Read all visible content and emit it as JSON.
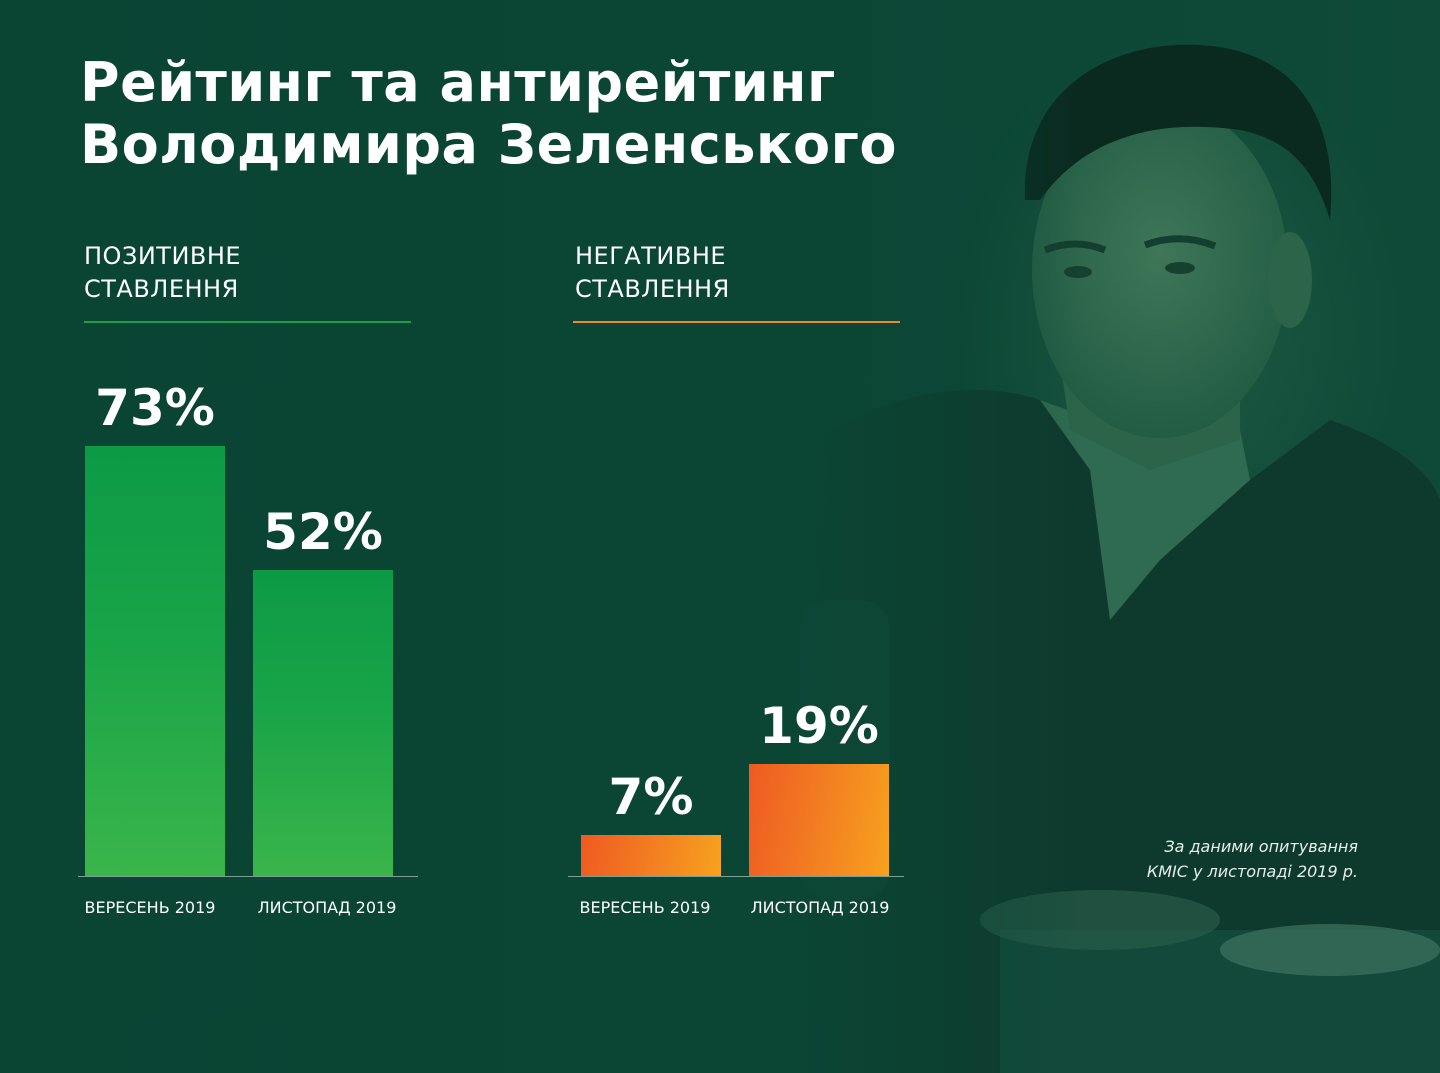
{
  "title": {
    "line1": "Рейтинг та антирейтинг",
    "line2": "Володимира Зеленського"
  },
  "source": {
    "line1": "За даними опитування",
    "line2": "КМІС у листопаді 2019 р."
  },
  "colors": {
    "background": "#0c4535",
    "positive": "#1fa548",
    "negative": "#f4821f",
    "text": "#ffffff"
  },
  "chart_data": [
    {
      "type": "bar",
      "title": "ПОЗИТИВНЕ СТАВЛЕННЯ",
      "title_lines": [
        "ПОЗИТИВНЕ",
        "СТАВЛЕННЯ"
      ],
      "categories": [
        "ВЕРЕСЕНЬ 2019",
        "ЛИСТОПАД 2019"
      ],
      "values": [
        73,
        52
      ],
      "value_labels": [
        "73%",
        "52%"
      ],
      "unit": "%",
      "color": "#1fa548",
      "ylim": [
        0,
        100
      ],
      "grid": false
    },
    {
      "type": "bar",
      "title": "НЕГАТИВНЕ СТАВЛЕННЯ",
      "title_lines": [
        "НЕГАТИВНЕ",
        "СТАВЛЕННЯ"
      ],
      "categories": [
        "ВЕРЕСЕНЬ 2019",
        "ЛИСТОПАД 2019"
      ],
      "values": [
        7,
        19
      ],
      "value_labels": [
        "7%",
        "19%"
      ],
      "unit": "%",
      "color": "#f4821f",
      "ylim": [
        0,
        100
      ],
      "grid": false
    }
  ]
}
